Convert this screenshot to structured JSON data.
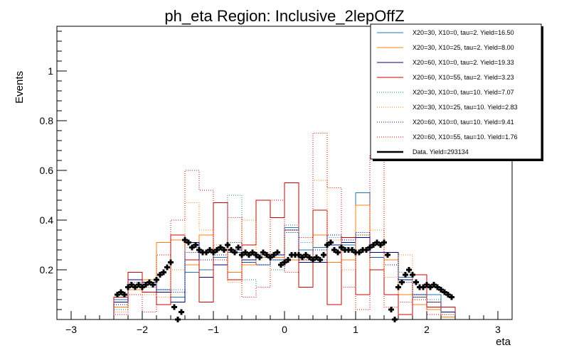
{
  "chart_data": {
    "type": "histogram",
    "title": "ph_eta Region: Inclusive_2lepOffZ",
    "xlabel": "eta",
    "ylabel": "Events",
    "xlim": [
      -3.2,
      3.2
    ],
    "ylim": [
      0,
      1.18
    ],
    "x_ticks": [
      -3,
      -2,
      -1,
      0,
      1,
      2,
      3
    ],
    "x_tick_labels": [
      "−3",
      "−2",
      "−1",
      "0",
      "1",
      "2",
      "3"
    ],
    "y_ticks": [
      0.2,
      0.4,
      0.6,
      0.8,
      1.0
    ],
    "y_tick_labels": [
      "0.2",
      "0.4",
      "0.6",
      "0.8",
      "1"
    ],
    "bin_edges": [
      -3.0,
      -2.4,
      -2.2,
      -2.0,
      -1.8,
      -1.6,
      -1.4,
      -1.2,
      -1.0,
      -0.8,
      -0.6,
      -0.4,
      -0.2,
      0.0,
      0.2,
      0.4,
      0.6,
      0.8,
      1.0,
      1.2,
      1.4,
      1.6,
      1.8,
      2.0,
      2.2,
      2.4,
      3.0
    ],
    "series": [
      {
        "name": "X20=30, X10=0, tau=2. Yield=16.50",
        "color": "#1f77b4",
        "style": "solid",
        "values": [
          0,
          0.08,
          0.16,
          0.14,
          0.12,
          0.09,
          0.19,
          0.2,
          0.25,
          0.27,
          0.23,
          0.22,
          0.24,
          0.37,
          0.28,
          0.29,
          0.3,
          0.3,
          0.51,
          0.25,
          0.24,
          0.17,
          0.09,
          0.1,
          0.03,
          0
        ]
      },
      {
        "name": "X20=30, X10=25, tau=2. Yield=8.00",
        "color": "#ff7f0e",
        "style": "solid",
        "values": [
          0,
          0.05,
          0.12,
          0.16,
          0.31,
          0.32,
          0.22,
          0.34,
          0.47,
          0.19,
          0.22,
          0.25,
          0.25,
          0.24,
          0.24,
          0.34,
          0.23,
          0.24,
          0.46,
          0.2,
          0.24,
          0.1,
          0.06,
          0.04,
          0.01,
          0
        ]
      },
      {
        "name": "X20=60, X10=0, tau=2. Yield=19.33",
        "color": "#00007f",
        "style": "solid",
        "values": [
          0,
          0.07,
          0.16,
          0.15,
          0.11,
          0.07,
          0.31,
          0.17,
          0.22,
          0.28,
          0.24,
          0.26,
          0.26,
          0.36,
          0.23,
          0.23,
          0.3,
          0.31,
          0.33,
          0.27,
          0.27,
          0.16,
          0.1,
          0.07,
          0.03,
          0
        ]
      },
      {
        "name": "X20=60, X10=55, tau=2. Yield=3.23",
        "color": "#d00000",
        "style": "solid",
        "values": [
          0,
          0.09,
          0.19,
          0.11,
          0.06,
          0.34,
          0.24,
          0.07,
          0.47,
          0.16,
          0.3,
          0.48,
          0.41,
          0.55,
          0.13,
          0.44,
          0.06,
          0.33,
          0.1,
          0.2,
          0.1,
          0.02,
          0.18,
          0.05,
          0.05,
          0
        ]
      },
      {
        "name": "X20=30, X10=0, tau=10. Yield=7.07",
        "color": "#1f77b4",
        "style": "dotted",
        "values": [
          0,
          0.04,
          0.15,
          0.13,
          0.12,
          0.12,
          0.29,
          0.27,
          0.28,
          0.5,
          0.16,
          0.13,
          0.2,
          0.38,
          0.31,
          0.24,
          0.33,
          0.29,
          0.34,
          0.3,
          0.22,
          0.19,
          0.1,
          0.08,
          0.02,
          0
        ]
      },
      {
        "name": "X20=30, X10=25, tau=10. Yield=2.83",
        "color": "#ff7f0e",
        "style": "dotted",
        "values": [
          0,
          0.03,
          0.13,
          0.1,
          0.09,
          0.2,
          0.47,
          0.36,
          0.3,
          0.15,
          0.4,
          0.27,
          0.25,
          0.36,
          0.25,
          0.56,
          0.32,
          0.2,
          0.34,
          0.36,
          0.17,
          0.26,
          0.09,
          0.07,
          0.02,
          0
        ]
      },
      {
        "name": "X20=60, X10=0, tau=10. Yield=9.41",
        "color": "#00007f",
        "style": "dotted",
        "values": [
          0,
          0.06,
          0.15,
          0.14,
          0.12,
          0.11,
          0.27,
          0.24,
          0.26,
          0.31,
          0.23,
          0.22,
          0.24,
          0.35,
          0.24,
          0.28,
          0.34,
          0.32,
          0.35,
          0.25,
          0.22,
          0.15,
          0.09,
          0.07,
          0.03,
          0
        ]
      },
      {
        "name": "X20=60, X10=55, tau=10. Yield=1.76",
        "color": "#d00000",
        "style": "dotted",
        "values": [
          0,
          0.02,
          0.1,
          0.03,
          0.26,
          0.4,
          0.6,
          0.52,
          0.24,
          0.41,
          0.09,
          0.13,
          0.48,
          0.19,
          0.33,
          0.75,
          0.53,
          0.13,
          0.04,
          0.66,
          0.05,
          0.07,
          0.08,
          0.02,
          0.0,
          0
        ]
      }
    ],
    "data": {
      "name": "Data. Yield=293134",
      "color": "#000000",
      "x": [
        -2.35,
        -2.3,
        -2.25,
        -2.2,
        -2.15,
        -2.1,
        -2.05,
        -2.0,
        -1.95,
        -1.9,
        -1.85,
        -1.8,
        -1.75,
        -1.7,
        -1.65,
        -1.6,
        -1.55,
        -1.5,
        -1.45,
        -1.4,
        -1.35,
        -1.3,
        -1.25,
        -1.2,
        -1.15,
        -1.1,
        -1.05,
        -1.0,
        -0.95,
        -0.9,
        -0.85,
        -0.8,
        -0.75,
        -0.7,
        -0.65,
        -0.6,
        -0.55,
        -0.5,
        -0.45,
        -0.4,
        -0.35,
        -0.3,
        -0.25,
        -0.2,
        -0.15,
        -0.1,
        -0.05,
        0.0,
        0.05,
        0.1,
        0.15,
        0.2,
        0.25,
        0.3,
        0.35,
        0.4,
        0.45,
        0.5,
        0.55,
        0.6,
        0.65,
        0.7,
        0.75,
        0.8,
        0.85,
        0.9,
        0.95,
        1.0,
        1.05,
        1.1,
        1.15,
        1.2,
        1.25,
        1.3,
        1.35,
        1.4,
        1.45,
        1.5,
        1.55,
        1.6,
        1.65,
        1.7,
        1.75,
        1.8,
        1.85,
        1.9,
        1.95,
        2.0,
        2.05,
        2.1,
        2.15,
        2.2,
        2.25,
        2.3,
        2.35
      ],
      "y": [
        0.1,
        0.11,
        0.1,
        0.13,
        0.14,
        0.13,
        0.14,
        0.13,
        0.14,
        0.15,
        0.14,
        0.16,
        0.18,
        0.19,
        0.21,
        0.23,
        0.05,
        0.0,
        0.03,
        0.32,
        0.31,
        0.29,
        0.3,
        0.28,
        0.27,
        0.27,
        0.28,
        0.27,
        0.28,
        0.29,
        0.28,
        0.3,
        0.28,
        0.27,
        0.29,
        0.26,
        0.27,
        0.26,
        0.27,
        0.26,
        0.25,
        0.27,
        0.26,
        0.25,
        0.26,
        0.27,
        0.22,
        0.23,
        0.24,
        0.26,
        0.26,
        0.26,
        0.25,
        0.26,
        0.25,
        0.24,
        0.25,
        0.24,
        0.26,
        0.3,
        0.31,
        0.28,
        0.27,
        0.29,
        0.28,
        0.28,
        0.28,
        0.27,
        0.27,
        0.28,
        0.28,
        0.29,
        0.3,
        0.31,
        0.3,
        0.31,
        0.26,
        0.04,
        0.0,
        0.13,
        0.15,
        0.18,
        0.2,
        0.18,
        0.15,
        0.13,
        0.13,
        0.14,
        0.13,
        0.14,
        0.13,
        0.12,
        0.11,
        0.1,
        0.09
      ]
    }
  }
}
